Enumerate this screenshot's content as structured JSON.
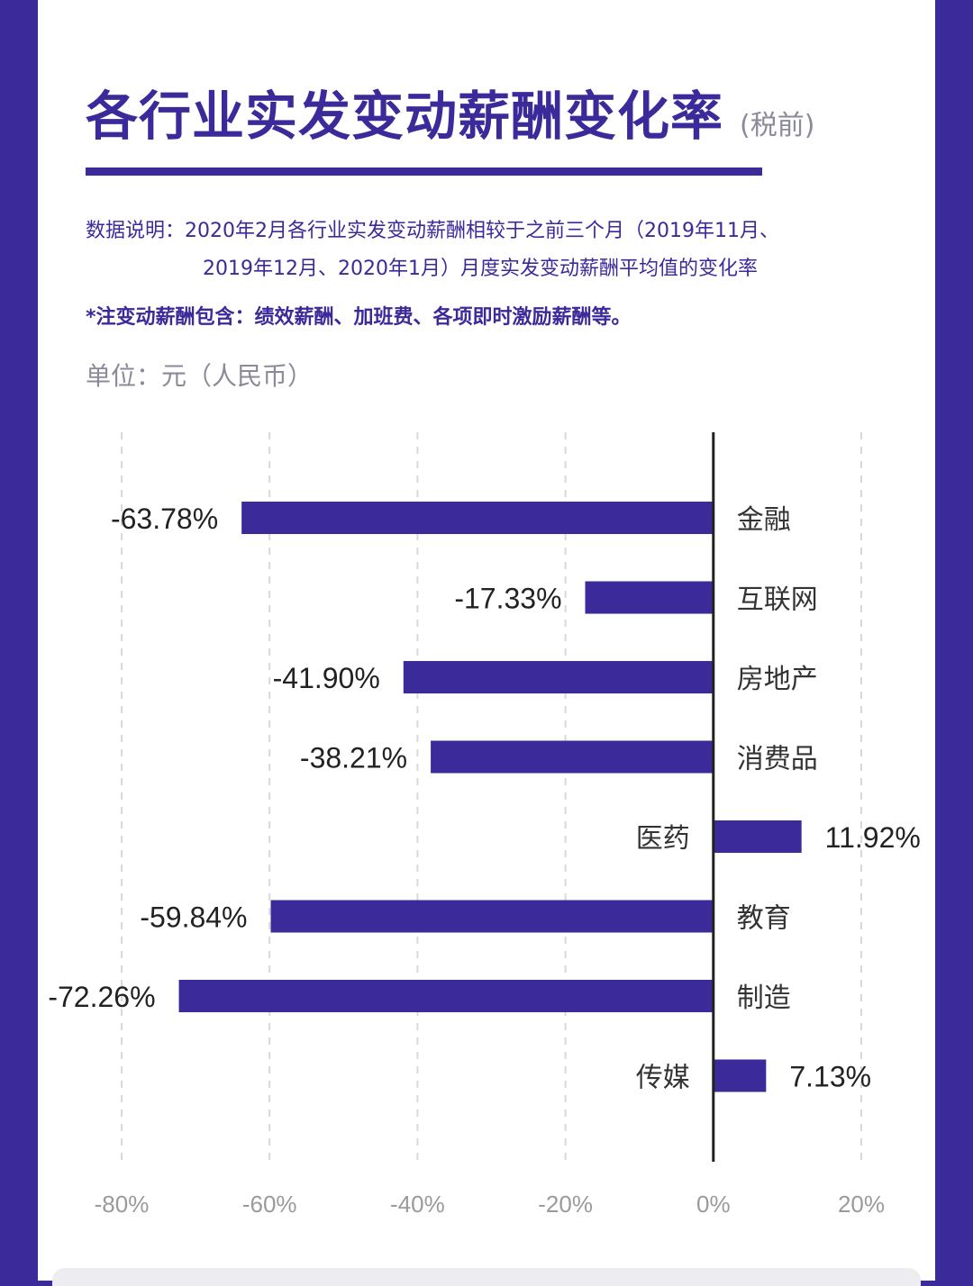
{
  "title": "各行业实发变动薪酬变化率",
  "subtitle": "(税前)",
  "note_line1": "数据说明：2020年2月各行业实发变动薪酬相较于之前三个月（2019年11月、",
  "note_line2": "2019年12月、2020年1月）月度实发变动薪酬平均值的变化率",
  "note_footnote": "*注变动薪酬包含：绩效薪酬、加班费、各项即时激励薪酬等。",
  "unit": "单位：元（人民币）",
  "colors": {
    "bar": "#3b2a9a",
    "background": "#3b2a9a",
    "card": "#ffffff",
    "grid": "#d9d9d9",
    "axis_text": "#9a9a9a"
  },
  "chart_data": {
    "type": "bar",
    "orientation": "horizontal",
    "categories": [
      "金融",
      "互联网",
      "房地产",
      "消费品",
      "医药",
      "教育",
      "制造",
      "传媒"
    ],
    "values": [
      -63.78,
      -17.33,
      -41.9,
      -38.21,
      11.92,
      -59.84,
      -72.26,
      7.13
    ],
    "value_labels": [
      "-63.78%",
      "-17.33%",
      "-41.90%",
      "-38.21%",
      "11.92%",
      "-59.84%",
      "-72.26%",
      "7.13%"
    ],
    "xlim": [
      -80,
      20
    ],
    "xticks": [
      -80,
      -60,
      -40,
      -20,
      0,
      20
    ],
    "xtick_labels": [
      "-80%",
      "-60%",
      "-40%",
      "-20%",
      "0%",
      "20%"
    ],
    "grid": "vertical dashed"
  }
}
